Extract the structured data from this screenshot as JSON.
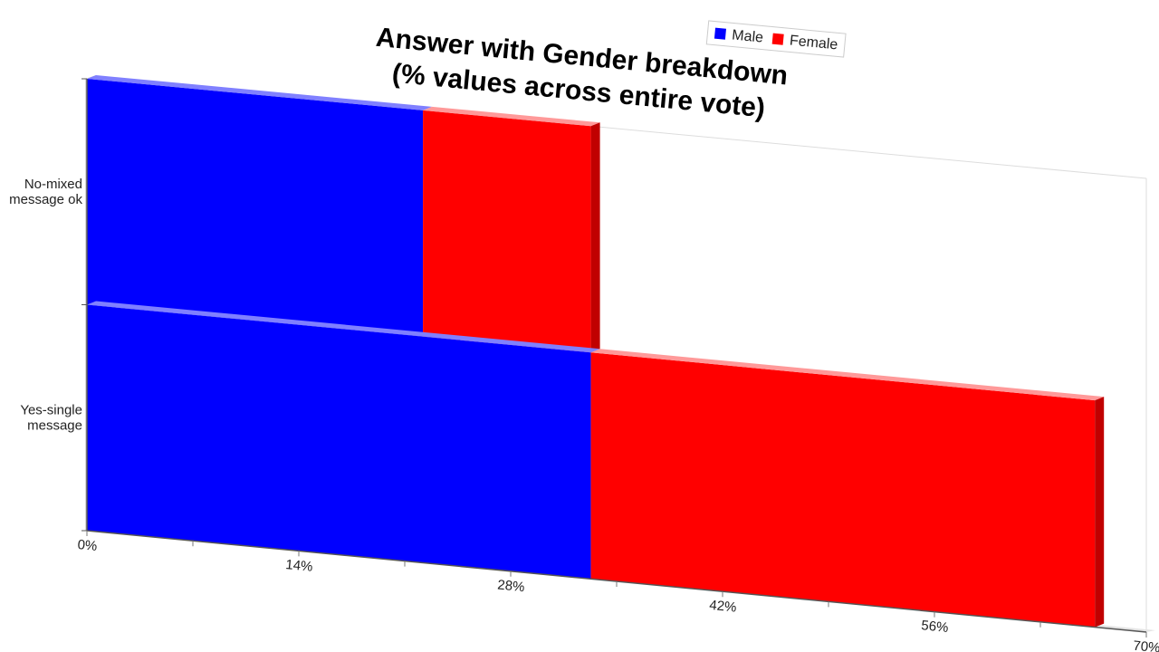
{
  "chart_data": {
    "type": "bar",
    "stacked": true,
    "orientation": "horizontal",
    "three_d": true,
    "title": [
      "Answer with Gender breakdown",
      "(% values across entire vote)"
    ],
    "categories": [
      "No-mixed message ok",
      "Yes-single message"
    ],
    "category_lines": [
      [
        "No-mixed",
        "message ok"
      ],
      [
        "Yes-single",
        "message"
      ]
    ],
    "series": [
      {
        "name": "Male",
        "values": [
          22.2,
          33.3
        ]
      },
      {
        "name": "Female",
        "values": [
          11.1,
          33.3
        ]
      }
    ],
    "xlim": [
      0,
      70
    ],
    "xticks": [
      0,
      14,
      28,
      42,
      56,
      70
    ],
    "tick_suffix": "%",
    "legend_position": "top",
    "colors": {
      "Male": "#0000ff",
      "Female": "#ff0000",
      "Female_side": "#c00000",
      "Female_top": "#ff9999",
      "Male_top": "#8080ff"
    }
  }
}
